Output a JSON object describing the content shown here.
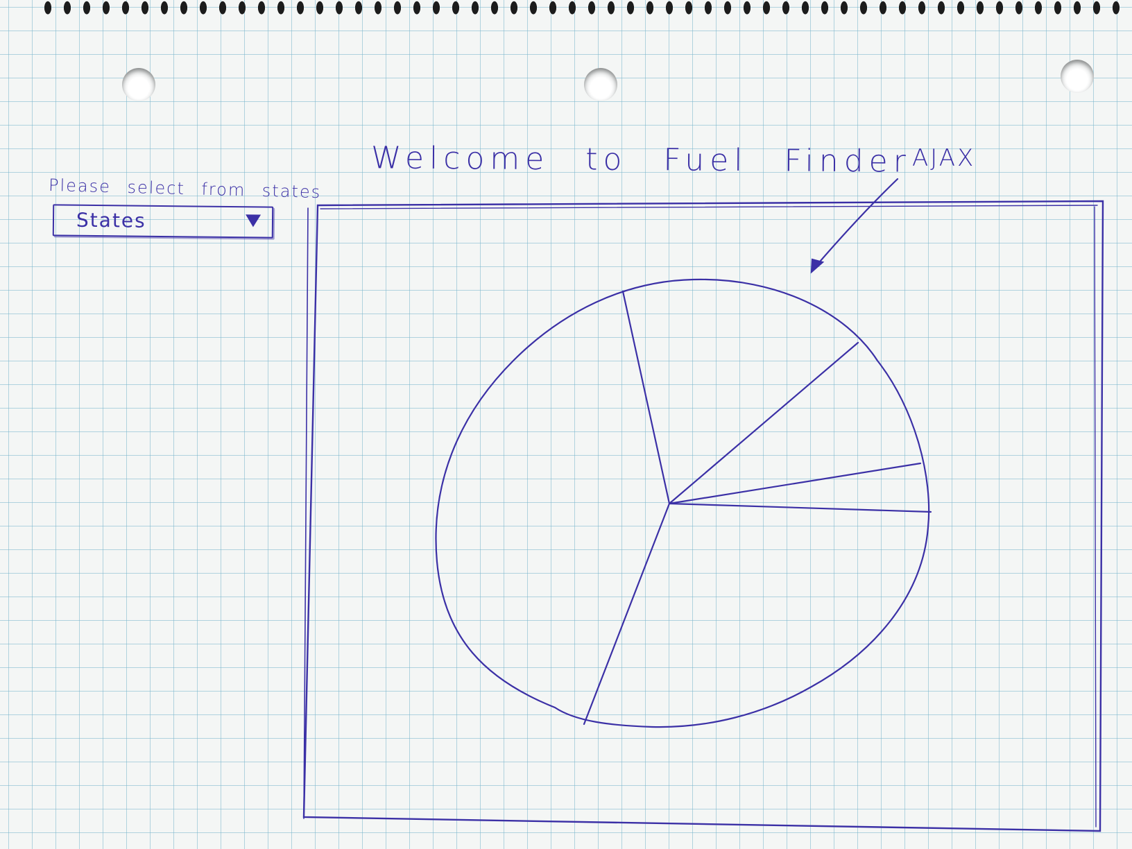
{
  "title": "Welcome to Fuel Finder",
  "instruction": "Please select from states",
  "state_select": {
    "value": "States"
  },
  "annotation": "AJAX",
  "icons": {
    "dropdown": "chevron-down-icon",
    "arrow": "arrow-icon"
  },
  "colors": {
    "ink": "#3b30a6",
    "paper": "#f4f6f5",
    "grid": "#78b4cd"
  }
}
